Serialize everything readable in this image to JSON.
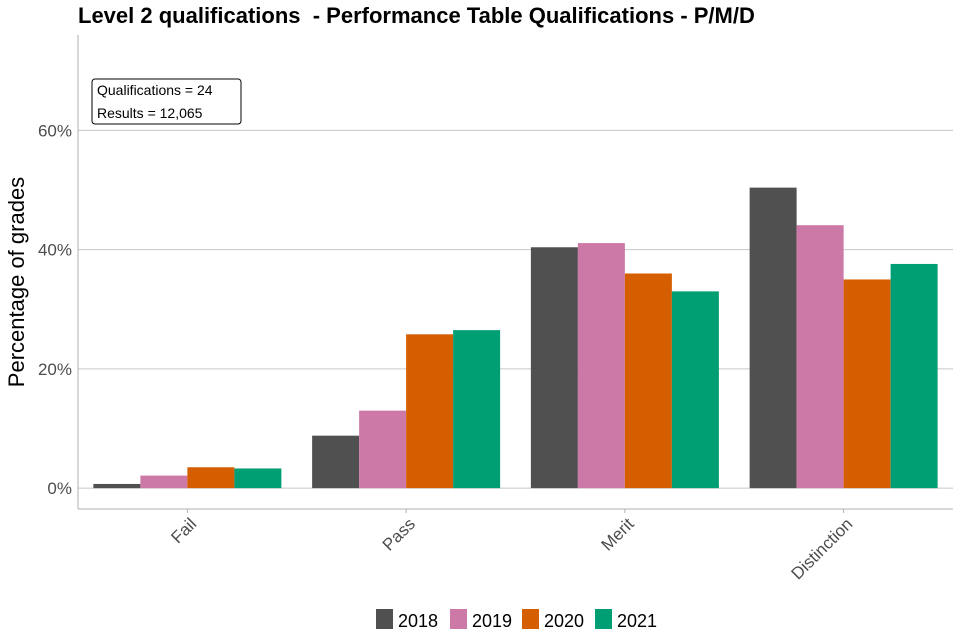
{
  "chart_data": {
    "type": "bar",
    "title": "Level 2 qualifications  - Performance Table Qualifications - P/M/D",
    "xlabel": "",
    "ylabel": "Percentage of grades",
    "categories": [
      "Fail",
      "Pass",
      "Merit",
      "Distinction"
    ],
    "series": [
      {
        "name": "2018",
        "color": "#505050",
        "values": [
          0.7,
          8.8,
          40.4,
          50.4
        ]
      },
      {
        "name": "2019",
        "color": "#cc79a7",
        "values": [
          2.1,
          13.0,
          41.1,
          44.1
        ]
      },
      {
        "name": "2020",
        "color": "#d55e00",
        "values": [
          3.5,
          25.8,
          36.0,
          35.0
        ]
      },
      {
        "name": "2021",
        "color": "#009e73",
        "values": [
          3.3,
          26.5,
          33.0,
          37.6
        ]
      }
    ],
    "yticks": [
      0,
      20,
      40,
      60
    ],
    "ytick_labels": [
      "0%",
      "20%",
      "40%",
      "60%"
    ],
    "ylim": [
      -3.5,
      76
    ],
    "grid": true,
    "legend_position": "bottom",
    "annotation": {
      "qualifications": "Qualifications = 24",
      "results": "Results = 12,065"
    }
  }
}
